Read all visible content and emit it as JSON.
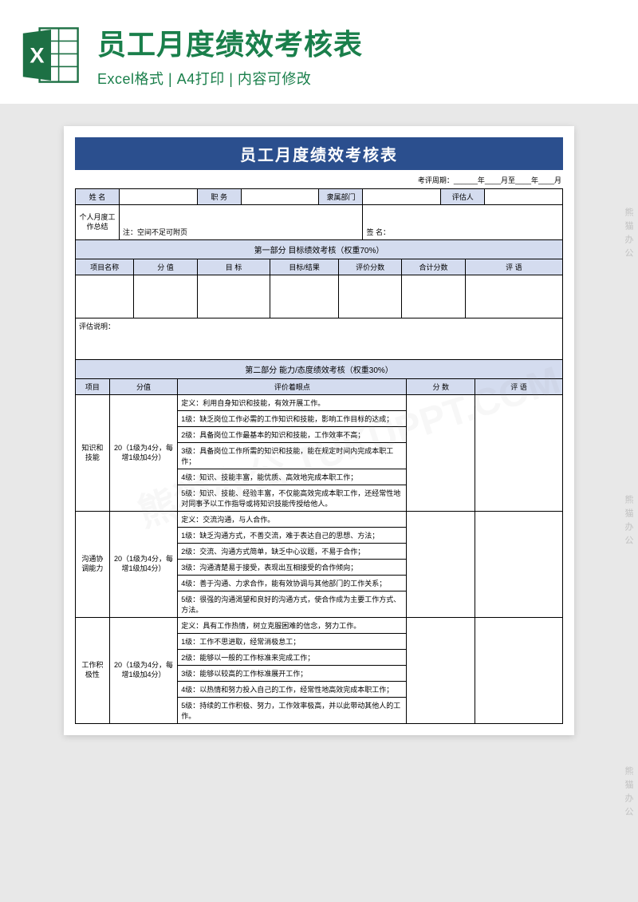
{
  "banner": {
    "title": "员工月度绩效考核表",
    "title_color": "#1a7f4b",
    "subtitle": "Excel格式 | A4打印 | 内容可修改",
    "subtitle_color": "#1a7f4b",
    "icon_green": "#1d7044",
    "icon_dark": "#0f5132"
  },
  "doc": {
    "title": "员工月度绩效考核表",
    "title_bg": "#2b4f8e",
    "header_bg": "#d4dcef",
    "period": "考评周期：______年____月至____年____月",
    "info_labels": {
      "name": "姓 名",
      "position": "职 务",
      "dept": "隶属部门",
      "evaluator": "评估人"
    },
    "summary_label": "个人月度工作总结",
    "summary_note": "注：空间不足可附页",
    "sign_label": "签 名：",
    "section1": {
      "title": "第一部分  目标绩效考核（权重70%）",
      "cols": [
        "项目名称",
        "分 值",
        "目 标",
        "目标/结果",
        "评价分数",
        "合计分数",
        "评 语"
      ],
      "explain_label": "评估说明："
    },
    "section2": {
      "title": "第二部分  能力/态度绩效考核（权重30%）",
      "cols": [
        "项目",
        "分值",
        "评价着眼点",
        "分 数",
        "评 语"
      ],
      "score_note": "20（1级为4分，每增1级加4分）",
      "items": [
        {
          "name": "知识和技能",
          "rows": [
            "定义：利用自身知识和技能，有效开展工作。",
            "1级：缺乏岗位工作必需的工作知识和技能，影响工作目标的达成；",
            "2级：具备岗位工作最基本的知识和技能，工作效率不高；",
            "3级：具备岗位工作所需的知识和技能，能在规定时间内完成本职工作；",
            "4级：知识、技能丰富，能优质、高效地完成本职工作；",
            "5级：知识、技能、经验丰富，不仅能高效完成本职工作，还经常性地对同事予以工作指导或将知识技能传授给他人。"
          ]
        },
        {
          "name": "沟通协调能力",
          "rows": [
            "定义：交流沟通，与人合作。",
            "1级：缺乏沟通方式，不善交流，难于表达自己的思想、方法；",
            "2级：交流、沟通方式简单，缺乏中心议题，不易于合作；",
            "3级：沟通清楚易于接受，表现出互相接受的合作倾向；",
            "4级：善于沟通、力求合作，能有效协调与其他部门的工作关系；",
            "5级：很强的沟通渴望和良好的沟通方式，使合作成为主要工作方式、方法。"
          ]
        },
        {
          "name": "工作积极性",
          "rows": [
            "定义：具有工作热情，树立克服困难的信念，努力工作。",
            "1级：工作不思进取，经常消极怠工；",
            "2级：能够以一般的工作标准来完成工作；",
            "3级：能够以较高的工作标准展开工作；",
            "4级：以热情和努力投入自己的工作，经常性地高效完成本职工作；",
            "5级：持续的工作积极、努力，工作效率极高，并以此带动其他人的工作。"
          ]
        }
      ]
    }
  },
  "watermark": {
    "text": "熊猫办公 TUKUPPT.COM",
    "side": "熊猫办公"
  }
}
